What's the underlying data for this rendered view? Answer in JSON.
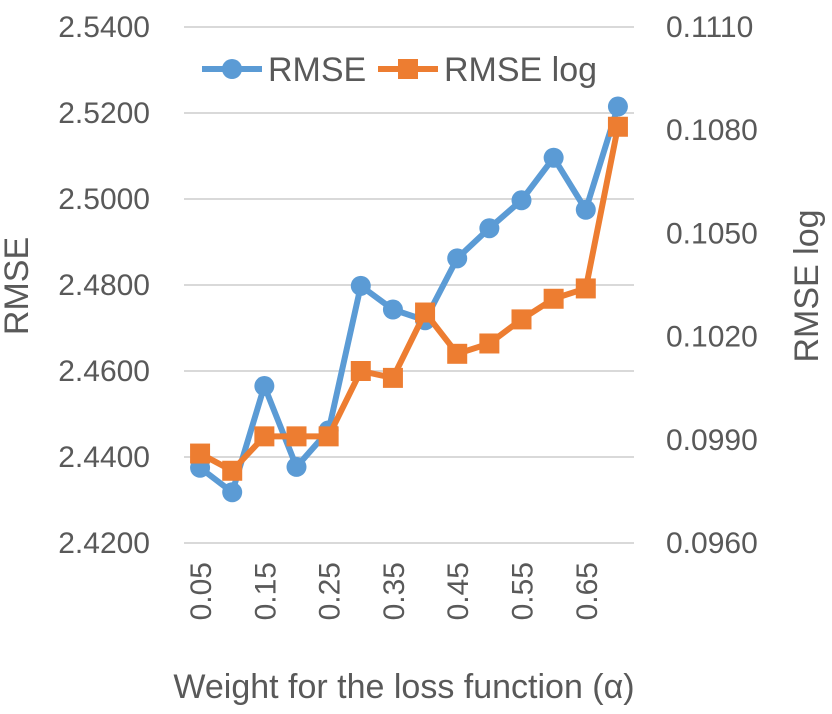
{
  "chart_data": {
    "type": "line",
    "title": "",
    "x": [
      "0.05",
      "0.1",
      "0.15",
      "0.2",
      "0.25",
      "0.3",
      "0.35",
      "0.4",
      "0.45",
      "0.5",
      "0.55",
      "0.6",
      "0.65",
      "0.7"
    ],
    "x_tick_labels": [
      "0.05",
      "0.15",
      "0.25",
      "0.35",
      "0.45",
      "0.55",
      "0.65"
    ],
    "xlabel": "Weight for the loss function (α)",
    "ylabel": "RMSE",
    "y2label": "RMSE log",
    "ylim": [
      2.42,
      2.54
    ],
    "y2lim": [
      0.096,
      0.111
    ],
    "y_ticks": [
      "2.4200",
      "2.4400",
      "2.4600",
      "2.4800",
      "2.5000",
      "2.5200",
      "2.5400"
    ],
    "y2_ticks": [
      "0.0960",
      "0.0990",
      "0.1020",
      "0.1050",
      "0.1080",
      "0.1110"
    ],
    "grid": true,
    "legend_position": "top",
    "series": [
      {
        "name": "RMSE",
        "axis": "left",
        "color": "#5B9BD5",
        "marker": "circle",
        "values": [
          2.4375,
          2.4318,
          2.4565,
          2.4377,
          2.4462,
          2.4798,
          2.4743,
          2.4718,
          2.4862,
          2.4932,
          2.4997,
          2.5096,
          2.4975,
          2.5215
        ]
      },
      {
        "name": "RMSE log",
        "axis": "right",
        "color": "#ED7D31",
        "marker": "square",
        "values": [
          0.0986,
          0.0981,
          0.0991,
          0.0991,
          0.0991,
          0.101,
          0.1008,
          0.1027,
          0.1015,
          0.1018,
          0.1025,
          0.1031,
          0.1034,
          0.1081
        ]
      }
    ]
  }
}
